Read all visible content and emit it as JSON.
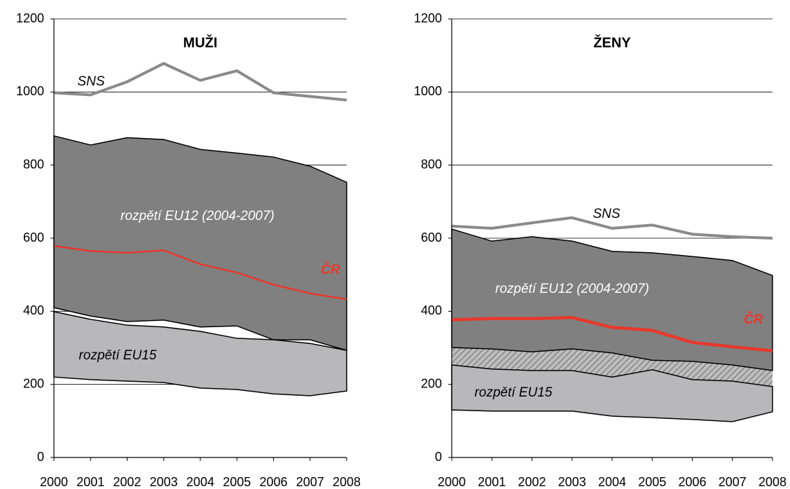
{
  "chart_data": [
    {
      "type": "band-line",
      "title": "MUŽI",
      "categories": [
        "2000",
        "2001",
        "2002",
        "2003",
        "2004",
        "2005",
        "2006",
        "2007",
        "2008"
      ],
      "ylim": [
        0,
        1200
      ],
      "yticks": [
        0,
        200,
        400,
        600,
        800,
        1000,
        1200
      ],
      "grid": true,
      "hatch_gap": false,
      "series": [
        {
          "name": "rozpětí EU12 (2004-2007)",
          "kind": "band",
          "color": "#808080",
          "values": [
            880,
            855,
            875,
            870,
            843,
            833,
            822,
            797,
            753
          ],
          "lower": [
            410,
            387,
            372,
            376,
            357,
            360,
            322,
            322,
            293
          ]
        },
        {
          "name": "rozpětí EU15",
          "kind": "band",
          "color": "#b8b8ba",
          "values": [
            399,
            378,
            362,
            357,
            345,
            326,
            322,
            312,
            293
          ],
          "lower": [
            220,
            213,
            209,
            205,
            190,
            186,
            174,
            169,
            182
          ]
        },
        {
          "name": "SNS",
          "kind": "line",
          "color": "#8a8a8a",
          "line_width": 4,
          "values": [
            998,
            992,
            1028,
            1078,
            1032,
            1058,
            998,
            988,
            978
          ]
        },
        {
          "name": "ČR",
          "kind": "line",
          "color": "#e8382d",
          "line_width": 2.5,
          "values": [
            579,
            565,
            560,
            567,
            529,
            506,
            473,
            449,
            433
          ]
        }
      ]
    },
    {
      "type": "band-line",
      "title": "ŽENY",
      "categories": [
        "2000",
        "2001",
        "2002",
        "2003",
        "2004",
        "2005",
        "2006",
        "2007",
        "2008"
      ],
      "ylim": [
        0,
        1200
      ],
      "yticks": [
        0,
        200,
        400,
        600,
        800,
        1000,
        1200
      ],
      "grid": true,
      "hatch_gap": true,
      "series": [
        {
          "name": "rozpětí EU12 (2004-2007)",
          "kind": "band",
          "color": "#808080",
          "values": [
            625,
            592,
            604,
            592,
            564,
            560,
            550,
            539,
            498
          ],
          "lower": [
            301,
            297,
            289,
            297,
            286,
            266,
            263,
            253,
            238
          ]
        },
        {
          "name": "rozpětí EU15",
          "kind": "band",
          "color": "#b8b8ba",
          "values": [
            253,
            242,
            238,
            238,
            220,
            240,
            213,
            209,
            194
          ],
          "lower": [
            130,
            127,
            127,
            127,
            113,
            109,
            104,
            98,
            125
          ]
        },
        {
          "name": "SNS",
          "kind": "line",
          "color": "#8a8a8a",
          "line_width": 4,
          "values": [
            633,
            627,
            642,
            656,
            627,
            636,
            611,
            604,
            600
          ]
        },
        {
          "name": "ČR",
          "kind": "line",
          "color": "#e8382d",
          "line_width": 4.5,
          "values": [
            377,
            380,
            380,
            383,
            356,
            348,
            315,
            303,
            292
          ]
        }
      ]
    }
  ]
}
